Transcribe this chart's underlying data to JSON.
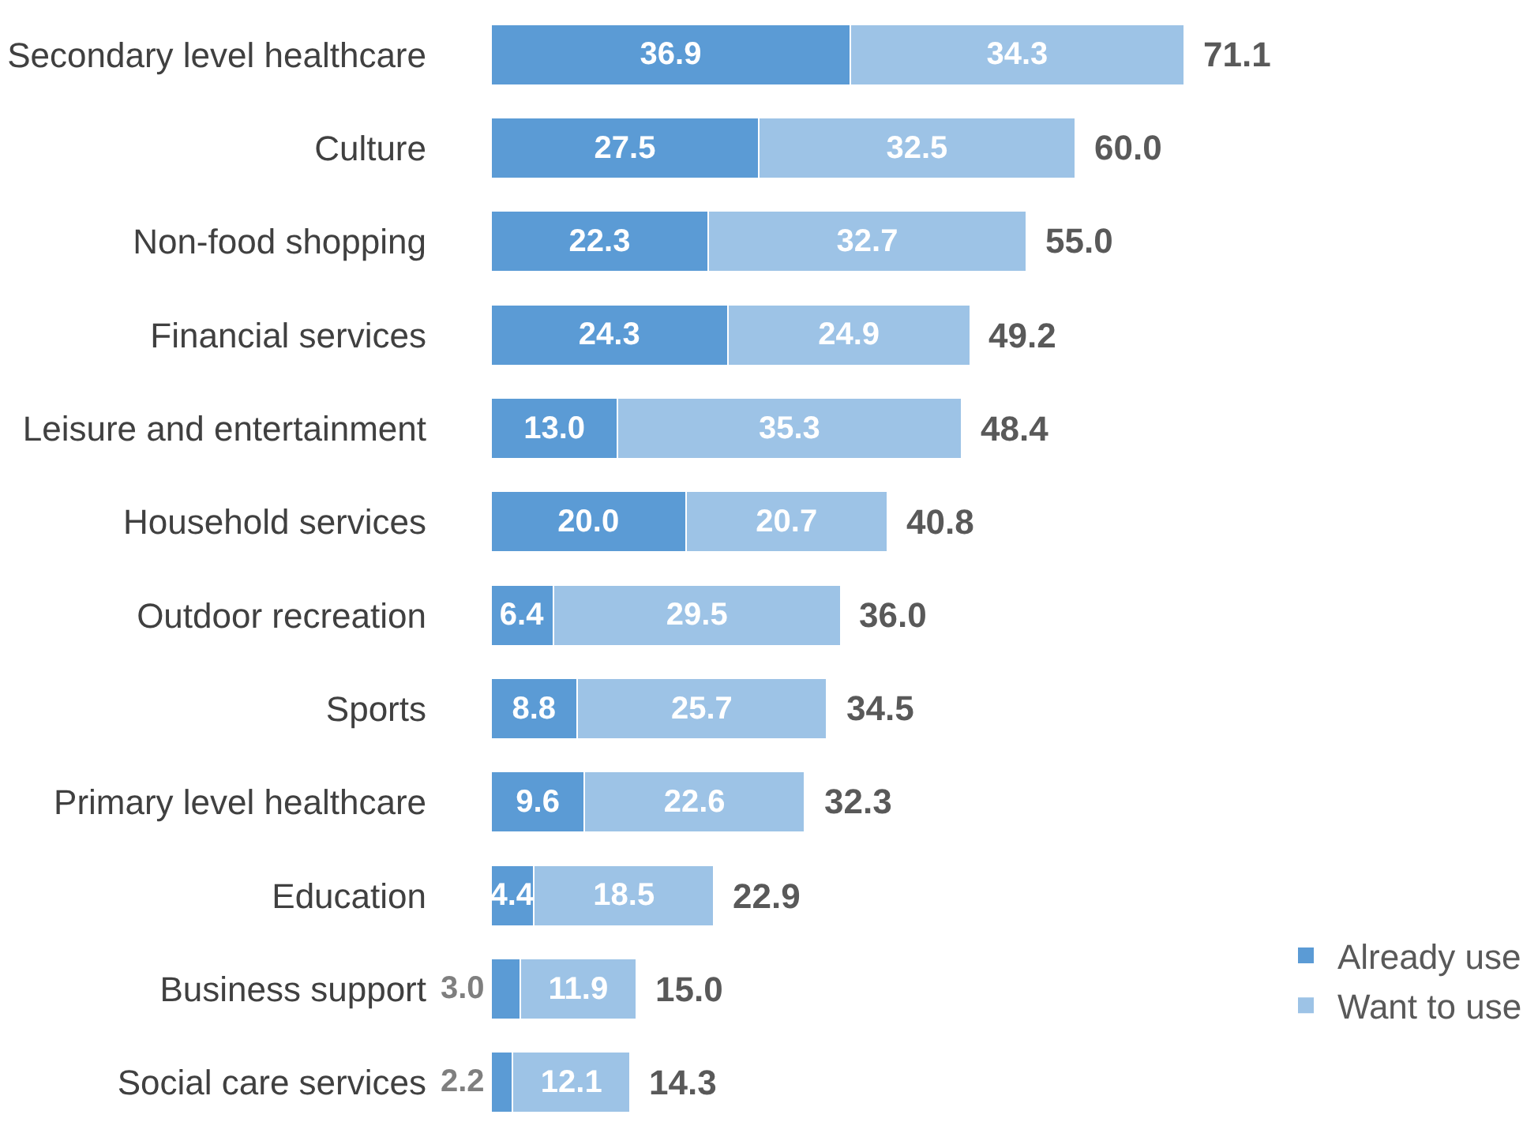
{
  "chart_data": {
    "type": "bar",
    "orientation": "horizontal",
    "stacked": true,
    "legend": "bottom right",
    "categories": [
      "Secondary level healthcare",
      "Culture",
      "Non-food shopping",
      "Financial services",
      "Leisure and entertainment",
      "Household services",
      "Outdoor recreation",
      "Sports",
      "Primary level healthcare",
      "Education",
      "Business support",
      "Social care services"
    ],
    "series": [
      {
        "name": "Already use",
        "color": "#5b9bd5",
        "values": [
          36.9,
          27.5,
          22.3,
          24.3,
          13.0,
          20.0,
          6.4,
          8.8,
          9.6,
          4.4,
          3.0,
          2.2
        ],
        "value_labels": [
          "36.9",
          "27.5",
          "22.3",
          "24.3",
          "13.0",
          "20.0",
          "6.4",
          "8.8",
          "9.6",
          "4.4",
          "3.0",
          "2.2"
        ]
      },
      {
        "name": "Want to use",
        "color": "#9dc3e6",
        "values": [
          34.3,
          32.5,
          32.7,
          24.9,
          35.3,
          20.7,
          29.5,
          25.7,
          22.6,
          18.5,
          11.9,
          12.1
        ],
        "value_labels": [
          "34.3",
          "32.5",
          "32.7",
          "24.9",
          "35.3",
          "20.7",
          "29.5",
          "25.7",
          "22.6",
          "18.5",
          "11.9",
          "12.1"
        ]
      }
    ],
    "totals": [
      "71.1",
      "60.0",
      "55.0",
      "49.2",
      "48.4",
      "40.8",
      "36.0",
      "34.5",
      "32.3",
      "22.9",
      "15.0",
      "14.3"
    ]
  }
}
